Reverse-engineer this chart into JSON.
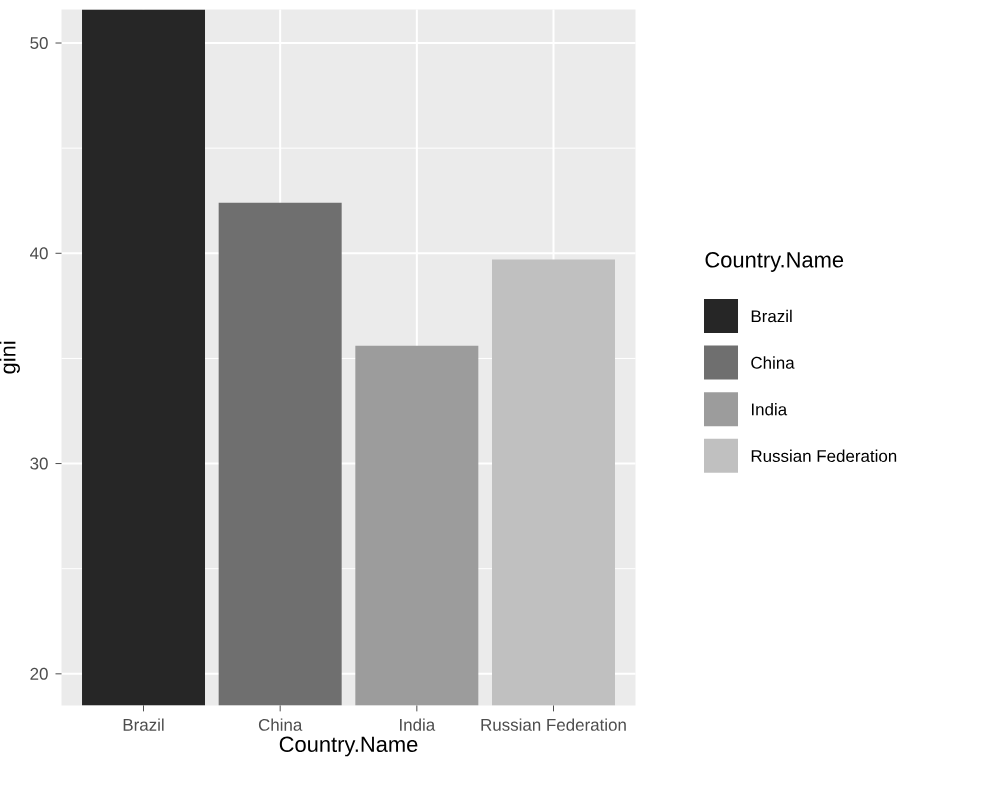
{
  "chart_data": {
    "type": "bar",
    "xlabel": "Country.Name",
    "ylabel": "gini",
    "legend_title": "Country.Name",
    "categories": [
      "Brazil",
      "China",
      "India",
      "Russian Federation"
    ],
    "series": [
      {
        "name": "Brazil",
        "color": "#262626",
        "values": [
          51.6,
          null,
          null,
          null
        ]
      },
      {
        "name": "China",
        "color": "#6f6f6f",
        "values": [
          null,
          42.4,
          null,
          null
        ]
      },
      {
        "name": "India",
        "color": "#9c9c9c",
        "values": [
          null,
          null,
          35.6,
          null
        ]
      },
      {
        "name": "Russian Federation",
        "color": "#c0c0c0",
        "values": [
          null,
          null,
          null,
          39.7
        ]
      }
    ],
    "ylim": [
      18.5,
      51.6
    ],
    "yticks": [
      20,
      30,
      40,
      50
    ],
    "grid": true,
    "legend": "right"
  }
}
